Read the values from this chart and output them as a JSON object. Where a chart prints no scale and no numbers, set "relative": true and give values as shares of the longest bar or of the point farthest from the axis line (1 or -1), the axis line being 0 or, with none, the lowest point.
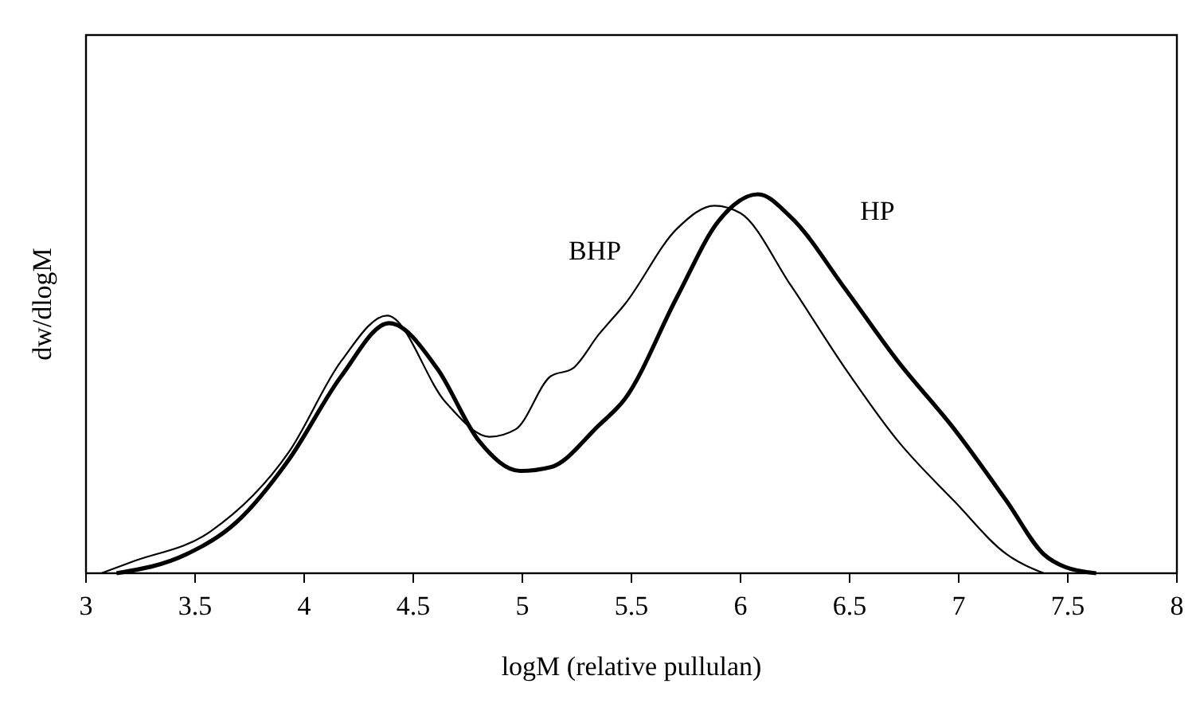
{
  "chart_data": {
    "type": "line",
    "relative": true,
    "xlabel": "logM (relative pullulan)",
    "ylabel": "dw/dlogM",
    "xlim": [
      3,
      8
    ],
    "xticks": [
      3,
      3.5,
      4,
      4.5,
      5,
      5.5,
      6,
      6.5,
      7,
      7.5,
      8
    ],
    "grid": false,
    "line_style": "solid",
    "series": [
      {
        "name": "HP",
        "color": "#000000",
        "x": [
          3.14,
          3.46,
          3.69,
          3.93,
          4.17,
          4.39,
          4.61,
          4.8,
          4.99,
          5.13,
          5.35,
          5.47,
          5.71,
          5.9,
          6.08,
          6.23,
          6.48,
          6.72,
          6.98,
          7.22,
          7.39,
          7.49,
          7.63
        ],
        "values": [
          0,
          0.05,
          0.135,
          0.3,
          0.52,
          0.66,
          0.54,
          0.35,
          0.27,
          0.28,
          0.39,
          0.46,
          0.73,
          0.93,
          1,
          0.94,
          0.75,
          0.56,
          0.38,
          0.19,
          0.05,
          0.016,
          0
        ]
      },
      {
        "name": "BHP",
        "color": "#000000",
        "x": [
          3.07,
          3.21,
          3.57,
          3.93,
          4.17,
          4.38,
          4.65,
          4.85,
          4.97,
          5.13,
          5.23,
          5.35,
          5.47,
          5.71,
          5.88,
          6,
          6.23,
          6.48,
          6.72,
          6.98,
          7.22,
          7.39
        ],
        "values": [
          0,
          0.03,
          0.11,
          0.32,
          0.56,
          0.68,
          0.45,
          0.36,
          0.38,
          0.52,
          0.54,
          0.63,
          0.71,
          0.91,
          0.97,
          0.95,
          0.76,
          0.54,
          0.35,
          0.19,
          0.05,
          0
        ]
      }
    ]
  }
}
